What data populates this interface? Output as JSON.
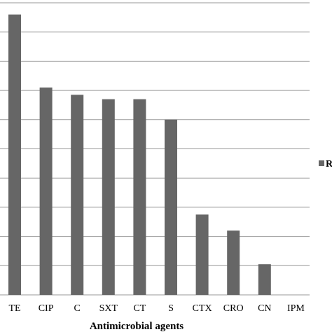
{
  "chart_data": {
    "type": "bar",
    "categories": [
      "TE",
      "CIP",
      "C",
      "SXT",
      "CT",
      "S",
      "CTX",
      "CRO",
      "CN",
      "IPM"
    ],
    "series": [
      {
        "values": [
          9.6,
          7.1,
          6.85,
          6.7,
          6.7,
          6.0,
          2.75,
          2.2,
          1.05,
          0
        ],
        "color": "#666666"
      }
    ],
    "xlabel": "Antimicrobial agents",
    "ylim": [
      0,
      10
    ],
    "ytick_step": 1,
    "grid": true,
    "legend": {
      "placement": "right",
      "label": "R"
    }
  }
}
